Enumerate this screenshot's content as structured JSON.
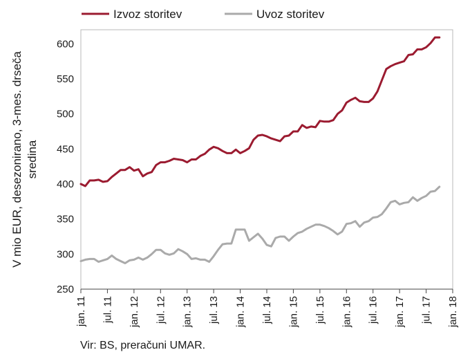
{
  "chart_data": {
    "type": "line",
    "ylabel_lines": [
      "V mio EUR, desezonirano, 3-mes. drseča",
      "sredina"
    ],
    "ylim": [
      250,
      620
    ],
    "yticks": [
      250,
      300,
      350,
      400,
      450,
      500,
      550,
      600
    ],
    "x_tick_labels": [
      "jan. 11",
      "jul. 11",
      "jan. 12",
      "jul. 12",
      "jan. 13",
      "jul. 13",
      "jan. 14",
      "jul. 14",
      "jan. 15",
      "jul. 15",
      "jan. 16",
      "jul. 16",
      "jan. 17",
      "jul. 17",
      "jan. 18"
    ],
    "x_start": "2011-01",
    "legend_position": "top-left",
    "grid": false,
    "series": [
      {
        "name": "Izvoz storitev",
        "color": "#9b1b30",
        "values": [
          400,
          397,
          405,
          405,
          406,
          403,
          404,
          410,
          415,
          420,
          420,
          424,
          419,
          421,
          411,
          415,
          417,
          427,
          431,
          431,
          433,
          436,
          435,
          434,
          431,
          435,
          435,
          440,
          443,
          449,
          453,
          451,
          447,
          444,
          444,
          449,
          444,
          447,
          451,
          463,
          469,
          470,
          468,
          465,
          463,
          461,
          468,
          469,
          475,
          475,
          484,
          480,
          482,
          481,
          490,
          489,
          489,
          491,
          500,
          505,
          516,
          520,
          523,
          518,
          517,
          517,
          522,
          532,
          548,
          564,
          568,
          571,
          573,
          575,
          584,
          585,
          592,
          592,
          595,
          601,
          609,
          609
        ]
      },
      {
        "name": "Uvoz storitev",
        "color": "#aaaaaa",
        "values": [
          290,
          292,
          293,
          293,
          289,
          291,
          293,
          298,
          293,
          290,
          287,
          291,
          292,
          295,
          292,
          295,
          300,
          306,
          306,
          301,
          299,
          301,
          307,
          304,
          300,
          293,
          294,
          292,
          292,
          289,
          297,
          306,
          314,
          315,
          315,
          335,
          335,
          335,
          319,
          324,
          329,
          322,
          313,
          311,
          323,
          325,
          325,
          319,
          325,
          330,
          332,
          336,
          339,
          342,
          342,
          340,
          337,
          333,
          328,
          332,
          343,
          344,
          347,
          339,
          345,
          347,
          352,
          353,
          357,
          365,
          374,
          376,
          371,
          373,
          374,
          381,
          376,
          380,
          383,
          389,
          390,
          396
        ]
      }
    ]
  },
  "source_text": "Vir: BS, preračuni UMAR."
}
